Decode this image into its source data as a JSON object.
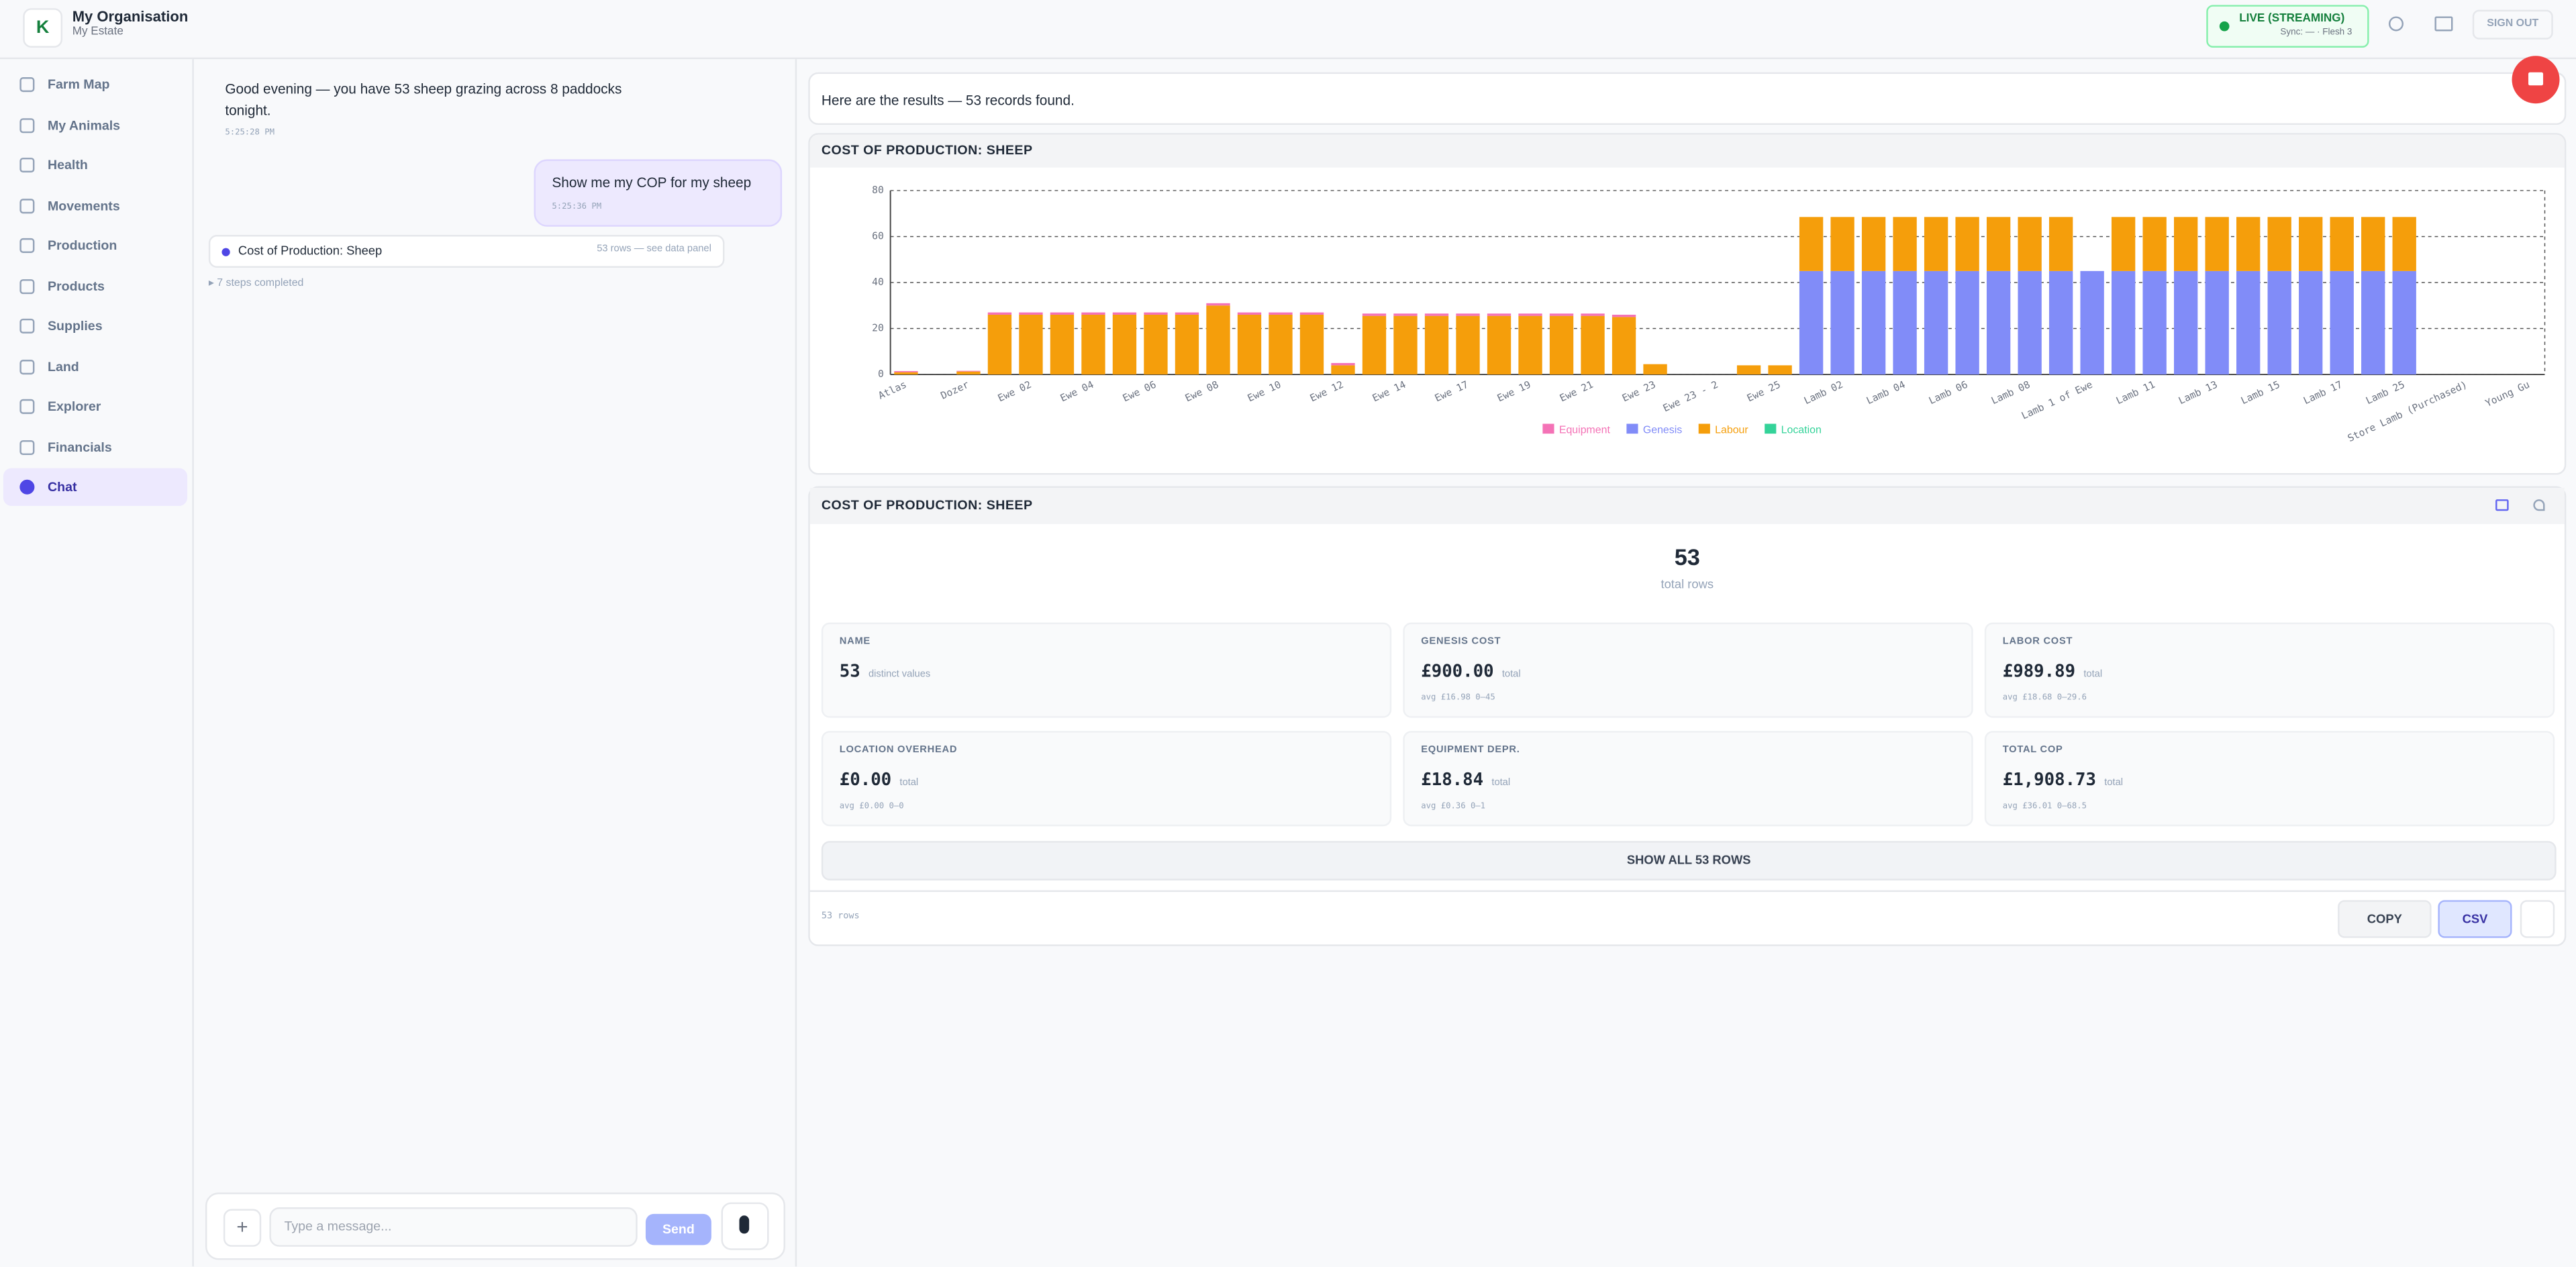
{
  "header": {
    "logo": "K",
    "org": "My Organisation",
    "estate": "My Estate",
    "status": "LIVE (STREAMING)",
    "sync": "Sync: — · Flesh 3",
    "sign_out": "SIGN OUT"
  },
  "nav": [
    "Farm Map",
    "My Animals",
    "Health",
    "Movements",
    "Production",
    "Products",
    "Supplies",
    "Land",
    "Explorer",
    "Financials",
    "Chat"
  ],
  "chat": {
    "messages": [
      {
        "text": "Good evening — you have 53 sheep grazing across 8 paddocks tonight.",
        "time": "5:25:28 PM"
      },
      {
        "text": "Show me my COP for my sheep",
        "time": "5:25:36 PM"
      }
    ],
    "tool": {
      "label": "Cost of Production: Sheep",
      "meta": "53 rows — see data panel"
    },
    "steps": "▸ 7 steps completed",
    "placeholder": "Type a message...",
    "send": "Send"
  },
  "results": {
    "summary": "Here are the results — 53 records found."
  },
  "chart_data": {
    "type": "bar",
    "stacked": true,
    "title": "COST OF PRODUCTION: SHEEP",
    "categories": [
      "Atlas",
      null,
      "Dozer",
      null,
      "Ewe 02",
      null,
      "Ewe 04",
      null,
      "Ewe 06",
      null,
      "Ewe 08",
      null,
      "Ewe 10",
      null,
      "Ewe 12",
      null,
      "Ewe 14",
      null,
      "Ewe 17",
      null,
      "Ewe 19",
      null,
      "Ewe 21",
      null,
      "Ewe 23",
      null,
      "Ewe 23 - 2",
      null,
      "Ewe 25",
      null,
      "Lamb 02",
      null,
      "Lamb 04",
      null,
      "Lamb 06",
      null,
      "Lamb 08",
      null,
      "Lamb 1 of Ewe",
      null,
      "Lamb 11",
      null,
      "Lamb 13",
      null,
      "Lamb 15",
      null,
      "Lamb 17",
      null,
      "Lamb 25",
      null,
      "Store Lamb (Purchased)",
      null,
      "Young Gu"
    ],
    "series": [
      {
        "name": "Genesis",
        "color": "#818cf8",
        "values": [
          0,
          0,
          0,
          0,
          0,
          0,
          0,
          0,
          0,
          0,
          0,
          0,
          0,
          0,
          0,
          0,
          0,
          0,
          0,
          0,
          0,
          0,
          0,
          0,
          0,
          0,
          0,
          0,
          0,
          45,
          45,
          45,
          45,
          45,
          45,
          45,
          45,
          45,
          45,
          45,
          45,
          45,
          45,
          45,
          45,
          45,
          45,
          45,
          45,
          0,
          0,
          0,
          0
        ]
      },
      {
        "name": "Labour",
        "color": "#f59e0b",
        "values": [
          1,
          0,
          1.3,
          26,
          26,
          26,
          26,
          26,
          26,
          26,
          30,
          26,
          26,
          26,
          4,
          25.5,
          25.5,
          25.5,
          25.5,
          25.5,
          25.5,
          25.5,
          25.5,
          25,
          4.5,
          0,
          0,
          4,
          4,
          23.5,
          23.5,
          23.5,
          23.5,
          23.5,
          23.5,
          23.5,
          23.5,
          23.5,
          0,
          23.5,
          23.5,
          23.5,
          23.5,
          23.5,
          23.5,
          23.5,
          23.5,
          23.5,
          23.5,
          0,
          0,
          0,
          0
        ]
      },
      {
        "name": "Equipment",
        "color": "#f472b6",
        "values": [
          0.5,
          0,
          0.3,
          1,
          1,
          1,
          1,
          1,
          1,
          1,
          1,
          1,
          1,
          1,
          1,
          1,
          1,
          1,
          1,
          1,
          1,
          1,
          1,
          1,
          0,
          0,
          0,
          0,
          0,
          0,
          0,
          0,
          0,
          0,
          0,
          0,
          0,
          0,
          0,
          0,
          0,
          0,
          0,
          0,
          0,
          0,
          0,
          0,
          0,
          0,
          0,
          0,
          0
        ]
      },
      {
        "name": "Location",
        "color": "#34d399",
        "values": [
          0,
          0,
          0,
          0,
          0,
          0,
          0,
          0,
          0,
          0,
          0,
          0,
          0,
          0,
          0,
          0,
          0,
          0,
          0,
          0,
          0,
          0,
          0,
          0,
          0,
          0,
          0,
          0,
          0,
          0,
          0,
          0,
          0,
          0,
          0,
          0,
          0,
          0,
          0,
          0,
          0,
          0,
          0,
          0,
          0,
          0,
          0,
          0,
          0,
          0,
          0,
          0,
          0
        ]
      }
    ],
    "legend_order": [
      "Equipment",
      "Genesis",
      "Labour",
      "Location"
    ],
    "ylim": [
      0,
      80
    ],
    "yticks": [
      0,
      20,
      40,
      60,
      80
    ],
    "grid": true
  },
  "panel": {
    "title": "COST OF PRODUCTION: SHEEP",
    "total": "53",
    "total_label": "total rows",
    "stats": [
      {
        "label": "NAME",
        "value": "53",
        "unit": "distinct values"
      },
      {
        "label": "GENESIS COST",
        "value": "£900.00",
        "unit": "total",
        "detail": "avg £16.98  0–45"
      },
      {
        "label": "LABOR COST",
        "value": "£989.89",
        "unit": "total",
        "detail": "avg £18.68  0–29.6"
      },
      {
        "label": "LOCATION OVERHEAD",
        "value": "£0.00",
        "unit": "total",
        "detail": "avg £0.00  0–0"
      },
      {
        "label": "EQUIPMENT DEPR.",
        "value": "£18.84",
        "unit": "total",
        "detail": "avg £0.36  0–1"
      },
      {
        "label": "TOTAL COP",
        "value": "£1,908.73",
        "unit": "total",
        "detail": "avg £36.01  0–68.5"
      }
    ],
    "show_all": "SHOW ALL 53 ROWS",
    "rows_note": "53 rows",
    "copy": "COPY",
    "csv": "CSV"
  }
}
